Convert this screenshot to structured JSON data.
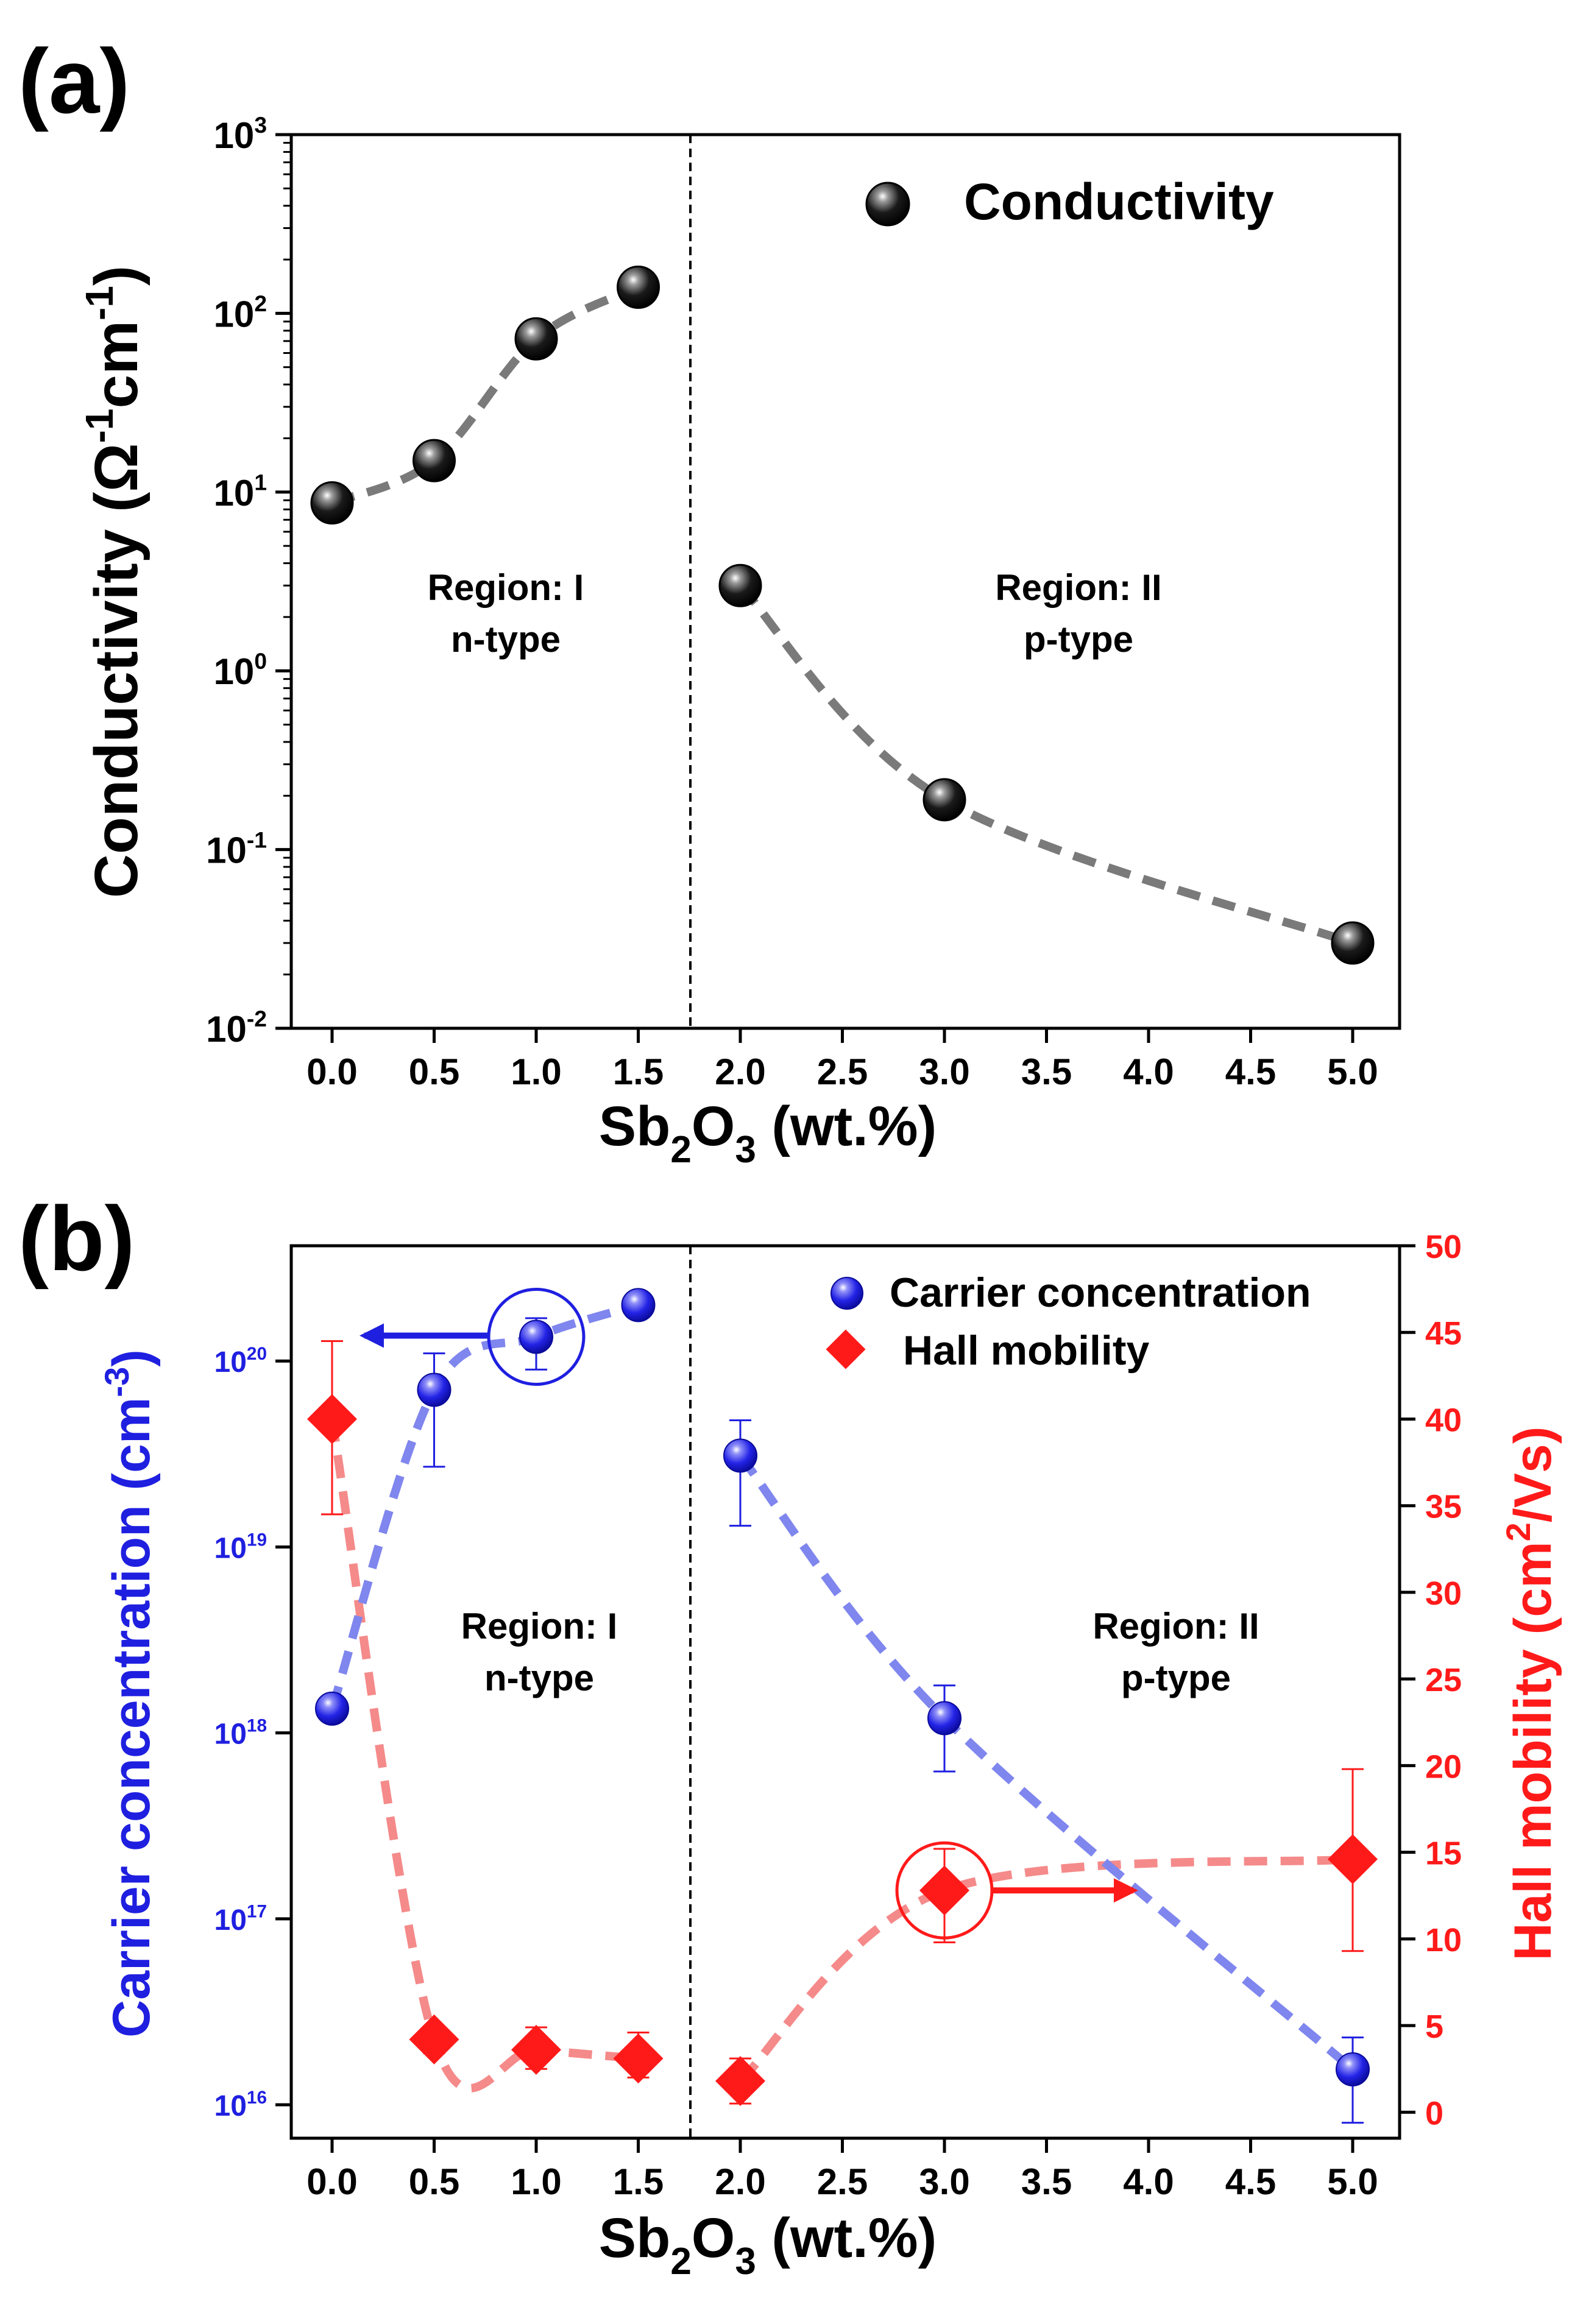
{
  "colors": {
    "axis": "#000000",
    "conductivity_marker": "#111111",
    "conductivity_fit": "#7a7a7a",
    "carrier": "#1f1fe0",
    "carrier_fit": "#7f86ee",
    "mobility": "#ff1a1a",
    "mobility_fit": "#f58a8a"
  },
  "chart_data": [
    {
      "panel": "(a)",
      "type": "scatter",
      "yscale": "log",
      "xlabel": {
        "base": "Sb",
        "sub1": "2",
        "mid": "O",
        "sub2": "3",
        "tail": " (wt.%)"
      },
      "ylabel": {
        "prefix": "Conductivity (",
        "s1": "Ω",
        "sup1": "-1",
        "s2": "cm",
        "sup2": "-1",
        "suffix": ")"
      },
      "categories": [
        "0.0",
        "0.5",
        "1.0",
        "1.5",
        "2.0",
        "2.5",
        "3.0",
        "3.5",
        "4.0",
        "4.5",
        "5.0"
      ],
      "y_ticks": [
        {
          "base": "10",
          "exp": "-2"
        },
        {
          "base": "10",
          "exp": "-1"
        },
        {
          "base": "10",
          "exp": "0"
        },
        {
          "base": "10",
          "exp": "1"
        },
        {
          "base": "10",
          "exp": "2"
        },
        {
          "base": "10",
          "exp": "3"
        }
      ],
      "ylim_log10": [
        -2,
        3
      ],
      "legend": [
        "Conductivity"
      ],
      "regions": [
        {
          "name": "Region: I",
          "type": "n-type"
        },
        {
          "name": "Region: II",
          "type": "p-type"
        }
      ],
      "divider_between": [
        "1.5",
        "2.0"
      ],
      "series": [
        {
          "name": "Conductivity",
          "points": [
            {
              "x": "0.0",
              "y": 8.7
            },
            {
              "x": "0.5",
              "y": 15
            },
            {
              "x": "1.0",
              "y": 72
            },
            {
              "x": "1.5",
              "y": 140
            },
            {
              "x": "2.0",
              "y": 3.0
            },
            {
              "x": "3.0",
              "y": 0.19
            },
            {
              "x": "5.0",
              "y": 0.03
            }
          ]
        }
      ]
    },
    {
      "panel": "(b)",
      "type": "scatter",
      "xlabel": {
        "base": "Sb",
        "sub1": "2",
        "mid": "O",
        "sub2": "3",
        "tail": " (wt.%)"
      },
      "ylabel_left": {
        "prefix": "Carrier concentration (cm",
        "sup": "-3",
        "suffix": ")"
      },
      "ylabel_right": {
        "prefix": "Hall mobility (cm",
        "sup": "2",
        "suffix": "/Vs)"
      },
      "categories": [
        "0.0",
        "0.5",
        "1.0",
        "1.5",
        "2.0",
        "2.5",
        "3.0",
        "3.5",
        "4.0",
        "4.5",
        "5.0"
      ],
      "y_left_ticks": [
        {
          "base": "10",
          "exp": "16"
        },
        {
          "base": "10",
          "exp": "17"
        },
        {
          "base": "10",
          "exp": "18"
        },
        {
          "base": "10",
          "exp": "19"
        },
        {
          "base": "10",
          "exp": "20"
        }
      ],
      "ylim_left_log10": [
        15.82,
        20.62
      ],
      "y_right_ticks": [
        "0",
        "5",
        "10",
        "15",
        "20",
        "25",
        "30",
        "35",
        "40",
        "45",
        "50"
      ],
      "ylim_right": [
        -1.5,
        50
      ],
      "legend": [
        "Carrier concentration",
        "Hall mobility"
      ],
      "regions": [
        {
          "name": "Region: I",
          "type": "n-type"
        },
        {
          "name": "Region: II",
          "type": "p-type"
        }
      ],
      "divider_between": [
        "1.5",
        "2.0"
      ],
      "series": [
        {
          "name": "Carrier concentration",
          "axis": "left",
          "points": [
            {
              "x": "0.0",
              "y": 1.35e+18
            },
            {
              "x": "0.5",
              "y": 7e+19,
              "err_low": 2.7e+19,
              "err_high": 1.1e+20
            },
            {
              "x": "1.0",
              "y": 1.35e+20,
              "err_low": 9e+19,
              "err_high": 1.7e+20
            },
            {
              "x": "1.5",
              "y": 2e+20
            },
            {
              "x": "2.0",
              "y": 3.1e+19,
              "err_low": 1.3e+19,
              "err_high": 4.8e+19
            },
            {
              "x": "3.0",
              "y": 1.2e+18,
              "err_low": 6.2e+17,
              "err_high": 1.8e+18
            },
            {
              "x": "5.0",
              "y": 1.55e+16,
              "err_low": 8000000000000000.0,
              "err_high": 2.3e+16
            }
          ]
        },
        {
          "name": "Hall mobility",
          "axis": "right",
          "points": [
            {
              "x": "0.0",
              "y": 40.0,
              "err_low": 34.5,
              "err_high": 44.5
            },
            {
              "x": "0.5",
              "y": 4.2,
              "err_low": 3.4,
              "err_high": 4.9
            },
            {
              "x": "1.0",
              "y": 3.6,
              "err_low": 2.5,
              "err_high": 4.9
            },
            {
              "x": "1.5",
              "y": 3.1,
              "err_low": 2.0,
              "err_high": 4.6
            },
            {
              "x": "2.0",
              "y": 1.8,
              "err_low": 0.5,
              "err_high": 3.1
            },
            {
              "x": "3.0",
              "y": 12.8,
              "err_low": 9.8,
              "err_high": 15.2
            },
            {
              "x": "5.0",
              "y": 14.6,
              "err_low": 9.3,
              "err_high": 19.8
            }
          ]
        }
      ],
      "annotations": [
        {
          "circle_on": "Carrier concentration @ 1.0",
          "arrow": "left",
          "points_to_axis": "left"
        },
        {
          "circle_on": "Hall mobility @ 3.0",
          "arrow": "right",
          "points_to_axis": "right"
        }
      ]
    }
  ]
}
